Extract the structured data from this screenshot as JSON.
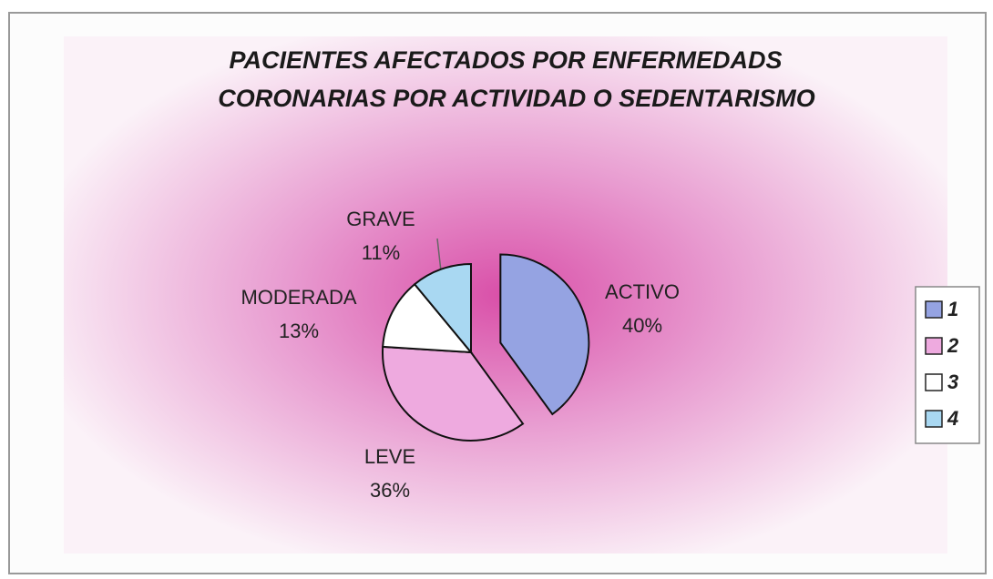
{
  "chart_data": {
    "type": "pie",
    "title": [
      "PACIENTES AFECTADOS POR ENFERMEDADS",
      "CORONARIAS POR ACTIVIDAD O SEDENTARISMO"
    ],
    "categories": [
      "ACTIVO",
      "LEVE",
      "MODERADA",
      "GRAVE"
    ],
    "values": [
      40,
      36,
      13,
      11
    ],
    "value_labels": [
      "40%",
      "36%",
      "13%",
      "11%"
    ],
    "colors": [
      "#95a3e2",
      "#eeaadf",
      "#ffffff",
      "#a9d8f2"
    ],
    "legend": [
      "1",
      "2",
      "3",
      "4"
    ],
    "legend_position": "right"
  }
}
